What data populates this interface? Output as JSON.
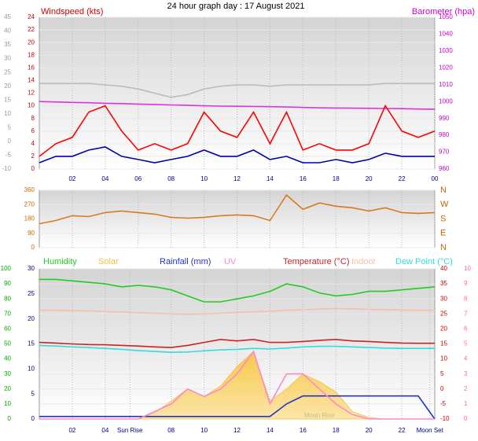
{
  "chart_data": [
    {
      "type": "line",
      "title": "24 hour graph day : 17 August 2021",
      "y_label": "Windspeed (kts)",
      "y2_label": "Barometer (hpa)",
      "x": [
        0,
        1,
        2,
        3,
        4,
        5,
        6,
        7,
        8,
        9,
        10,
        11,
        12,
        13,
        14,
        15,
        16,
        17,
        18,
        19,
        20,
        21,
        22,
        23,
        24
      ],
      "xlim": [
        0,
        24
      ],
      "xticks": [
        {
          "value": 2,
          "label": "02"
        },
        {
          "value": 4,
          "label": "04"
        },
        {
          "value": 6,
          "label": "06"
        },
        {
          "value": 8,
          "label": "08"
        },
        {
          "value": 10,
          "label": "10"
        },
        12,
        14,
        16,
        18,
        20,
        22,
        {
          "value": 24,
          "label": "00"
        }
      ],
      "ylim": [
        0,
        24
      ],
      "yticks": [
        0,
        2,
        4,
        6,
        8,
        10,
        12,
        14,
        16,
        18,
        20,
        22,
        24
      ],
      "y2lim": [
        960,
        1050
      ],
      "y2ticks": [
        960,
        970,
        980,
        990,
        1000,
        1010,
        1020,
        1030,
        1040,
        1050
      ],
      "y3lim": [
        -10,
        45
      ],
      "y3ticks": [
        -10,
        -5,
        0,
        5,
        10,
        15,
        20,
        25,
        30,
        35,
        40,
        45
      ],
      "axis_colors": {
        "y": "#cc0000",
        "y2": "#cc00cc",
        "y3": "#999999"
      },
      "grid": true,
      "series": [
        {
          "color": "#bbbbbb",
          "axis": "y3",
          "values": [
            21,
            21,
            21,
            21,
            20.5,
            20,
            19,
            17.5,
            16,
            17,
            19,
            20,
            20.5,
            20.5,
            20,
            20.5,
            20.5,
            20.5,
            20.5,
            20.5,
            20.5,
            21,
            21,
            21,
            21
          ]
        },
        {
          "color": "#dd33dd",
          "axis": "y2",
          "values": [
            1000,
            999.8,
            999.5,
            999.3,
            999,
            998.8,
            998.5,
            998.3,
            998,
            997.8,
            997.5,
            997.3,
            997.2,
            997.1,
            997,
            996.8,
            996.5,
            996.3,
            996.2,
            996.1,
            996,
            995.9,
            995.8,
            995.6,
            995.5
          ]
        },
        {
          "color": "#ff0000",
          "axis": "y",
          "values": [
            2,
            4,
            5,
            9,
            10,
            6,
            3,
            4,
            3,
            4,
            9,
            6,
            5,
            9,
            4,
            9,
            3,
            4,
            3,
            3,
            4,
            10,
            6,
            5,
            6
          ]
        },
        {
          "color": "#0000aa",
          "axis": "y",
          "values": [
            1,
            2,
            2,
            3,
            3.5,
            2,
            1.5,
            1,
            1.5,
            2,
            3,
            2,
            2,
            3,
            1.5,
            2,
            1,
            1,
            1.5,
            1,
            1.5,
            2.5,
            2,
            2,
            2
          ]
        }
      ]
    },
    {
      "type": "line",
      "x": [
        0,
        1,
        2,
        3,
        4,
        5,
        6,
        7,
        8,
        9,
        10,
        11,
        12,
        13,
        14,
        15,
        16,
        17,
        18,
        19,
        20,
        21,
        22,
        23,
        24
      ],
      "xlim": [
        0,
        24
      ],
      "xticks": [
        2,
        4,
        6,
        8,
        10,
        12,
        14,
        16,
        18,
        20,
        22,
        24
      ],
      "ylim": [
        0,
        360
      ],
      "yticks": [
        0,
        90,
        180,
        270,
        360
      ],
      "compass": [
        "N",
        "E",
        "S",
        "W",
        "N"
      ],
      "axis_colors": {
        "y": "#cc6600"
      },
      "grid": true,
      "series": [
        {
          "color": "#d97a1f",
          "axis": "y",
          "values": [
            150,
            170,
            200,
            195,
            220,
            230,
            220,
            210,
            190,
            185,
            190,
            200,
            205,
            200,
            170,
            330,
            240,
            280,
            260,
            250,
            230,
            250,
            220,
            215,
            220
          ]
        }
      ]
    },
    {
      "type": "line",
      "x": [
        0,
        1,
        2,
        3,
        4,
        5,
        6,
        7,
        8,
        9,
        10,
        11,
        12,
        13,
        14,
        15,
        16,
        17,
        18,
        19,
        20,
        21,
        22,
        23,
        24
      ],
      "xlim": [
        0,
        24
      ],
      "xticks": [
        {
          "value": 2,
          "label": "02"
        },
        {
          "value": 4,
          "label": "04"
        },
        {
          "value": 5.5,
          "label": "Sun Rise"
        },
        {
          "value": 8,
          "label": "08"
        },
        {
          "value": 10,
          "label": "10"
        },
        12,
        14,
        16,
        18,
        20,
        22,
        {
          "value": 23.7,
          "label": "Moon Set"
        }
      ],
      "ylim": [
        0,
        100
      ],
      "yticks": [
        0,
        10,
        20,
        30,
        40,
        50,
        60,
        70,
        80,
        90,
        100
      ],
      "y2lim": [
        0,
        30
      ],
      "y2ticks": [
        0,
        5,
        10,
        15,
        20,
        25,
        30
      ],
      "y3lim": [
        -10,
        40
      ],
      "y3ticks": [
        -10,
        -5,
        0,
        5,
        10,
        15,
        20,
        25,
        30,
        35,
        40
      ],
      "y4lim": [
        0,
        10
      ],
      "y4ticks": [
        0,
        1,
        2,
        3,
        4,
        5,
        6,
        7,
        8,
        9,
        10
      ],
      "axis_colors": {
        "y": "#00aa00",
        "y2": "#000080",
        "y3": "#cc0000",
        "y4": "#ff66aa"
      },
      "annotations": [
        {
          "text": "Moon Rise",
          "x": 17
        }
      ],
      "grid": true,
      "series": [
        {
          "name": "Humidity",
          "color": "#22cc22",
          "axis": "y",
          "values": [
            93,
            93,
            92,
            91,
            90,
            88,
            89,
            88,
            86,
            82,
            78,
            78,
            80,
            82,
            85,
            90,
            88,
            84,
            82,
            83,
            85,
            85,
            86,
            87,
            88
          ]
        },
        {
          "name": "Solar",
          "color": "#f5c040",
          "axis": "y",
          "area": true,
          "values": [
            0,
            0,
            0,
            0,
            0,
            0,
            0,
            4,
            12,
            20,
            15,
            22,
            35,
            45,
            12,
            20,
            30,
            25,
            18,
            5,
            1,
            0,
            0,
            0,
            0
          ]
        },
        {
          "name": "Rainfall (mm)",
          "color": "#2233cc",
          "axis": "y2",
          "values": [
            0.5,
            0.5,
            0.5,
            0.5,
            0.5,
            0.5,
            0.5,
            0.5,
            0.5,
            0.5,
            0.5,
            0.5,
            0.5,
            0.5,
            0.5,
            3,
            4.6,
            4.6,
            4.6,
            4.6,
            4.6,
            4.6,
            4.6,
            4.6,
            0
          ]
        },
        {
          "name": "UV",
          "color": "#ff88cc",
          "axis": "y4",
          "values": [
            0,
            0,
            0,
            0,
            0,
            0,
            0,
            0.5,
            1,
            2,
            1.5,
            2,
            3,
            4.5,
            1,
            3,
            3,
            2,
            1,
            0.3,
            0,
            0,
            0,
            0,
            0
          ]
        },
        {
          "name": "Temperature (°C)",
          "color": "#cc2222",
          "axis": "y3",
          "values": [
            15.5,
            15.3,
            15,
            14.8,
            14.7,
            14.5,
            14.3,
            14,
            13.8,
            14.5,
            15.5,
            16.5,
            16,
            16.5,
            15.5,
            15.5,
            15.8,
            16.2,
            16.5,
            16,
            15.8,
            15.5,
            15.3,
            15.2,
            15.2
          ]
        },
        {
          "name": "Indoor",
          "color": "#f5c0a8",
          "axis": "y3",
          "values": [
            26.2,
            26.2,
            26.1,
            26,
            25.8,
            25.6,
            25.4,
            25.2,
            25,
            24.9,
            25,
            25.2,
            25.5,
            25.7,
            25.9,
            26.2,
            26.4,
            26.6,
            26.8,
            26.7,
            26.5,
            26.4,
            26.3,
            26.2,
            26.2
          ]
        },
        {
          "name": "Dew Point (°C)",
          "color": "#33dddd",
          "axis": "y3",
          "values": [
            14.5,
            14.3,
            14,
            13.8,
            13.5,
            13.2,
            12.8,
            12.5,
            12.2,
            12.3,
            12.7,
            13,
            13.2,
            13.5,
            13.3,
            13.6,
            14,
            14.2,
            14.2,
            14,
            13.8,
            13.6,
            13.5,
            13.5,
            13.5
          ]
        }
      ]
    }
  ]
}
